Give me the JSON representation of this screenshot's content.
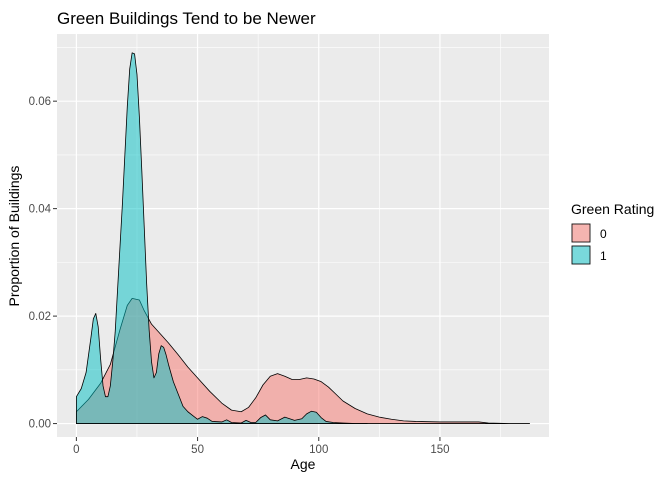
{
  "chart_data": {
    "type": "area",
    "title": "Green Buildings Tend to be Newer",
    "xlabel": "Age",
    "ylabel": "Proportion of Buildings",
    "xlim": [
      -8,
      195
    ],
    "ylim": [
      -0.0025,
      0.0725
    ],
    "x_ticks": [
      0,
      50,
      100,
      150
    ],
    "y_ticks": [
      0.0,
      0.02,
      0.04,
      0.06
    ],
    "x_tick_labels": [
      "0",
      "50",
      "100",
      "150"
    ],
    "y_tick_labels": [
      "0.00",
      "0.02",
      "0.04",
      "0.06"
    ],
    "grid": true,
    "legend": {
      "title": "Green Rating",
      "position": "right"
    },
    "series": [
      {
        "name": "0",
        "fill": "#F8766D",
        "points": [
          [
            0,
            0.0022
          ],
          [
            5,
            0.0045
          ],
          [
            10,
            0.0075
          ],
          [
            14,
            0.011
          ],
          [
            18,
            0.0175
          ],
          [
            21,
            0.022
          ],
          [
            23,
            0.0233
          ],
          [
            26,
            0.023
          ],
          [
            28,
            0.021
          ],
          [
            31,
            0.0185
          ],
          [
            35,
            0.0165
          ],
          [
            38,
            0.015
          ],
          [
            42,
            0.0128
          ],
          [
            46,
            0.0105
          ],
          [
            50,
            0.0085
          ],
          [
            55,
            0.006
          ],
          [
            60,
            0.0038
          ],
          [
            64,
            0.0025
          ],
          [
            68,
            0.0022
          ],
          [
            71,
            0.003
          ],
          [
            74,
            0.0048
          ],
          [
            77,
            0.0072
          ],
          [
            80,
            0.0088
          ],
          [
            83,
            0.0093
          ],
          [
            86,
            0.0088
          ],
          [
            89,
            0.0082
          ],
          [
            92,
            0.0082
          ],
          [
            95,
            0.0085
          ],
          [
            98,
            0.0083
          ],
          [
            101,
            0.0078
          ],
          [
            104,
            0.0068
          ],
          [
            107,
            0.0055
          ],
          [
            110,
            0.0042
          ],
          [
            115,
            0.0028
          ],
          [
            120,
            0.0018
          ],
          [
            125,
            0.0012
          ],
          [
            130,
            0.0008
          ],
          [
            135,
            0.0005
          ],
          [
            140,
            0.0004
          ],
          [
            150,
            0.0003
          ],
          [
            160,
            0.0003
          ],
          [
            166,
            0.0003
          ],
          [
            170,
            0.0001
          ],
          [
            180,
            0.0
          ],
          [
            187,
            0.0
          ]
        ]
      },
      {
        "name": "1",
        "fill": "#00BFC4",
        "points": [
          [
            0,
            0.005
          ],
          [
            2,
            0.0065
          ],
          [
            4,
            0.0095
          ],
          [
            6,
            0.016
          ],
          [
            7,
            0.0195
          ],
          [
            8,
            0.0205
          ],
          [
            9,
            0.018
          ],
          [
            10,
            0.012
          ],
          [
            11,
            0.007
          ],
          [
            12,
            0.005
          ],
          [
            13,
            0.005
          ],
          [
            14,
            0.007
          ],
          [
            15,
            0.0115
          ],
          [
            16,
            0.017
          ],
          [
            17,
            0.025
          ],
          [
            18,
            0.033
          ],
          [
            19,
            0.041
          ],
          [
            20,
            0.05
          ],
          [
            21,
            0.059
          ],
          [
            22,
            0.066
          ],
          [
            23,
            0.069
          ],
          [
            24,
            0.0688
          ],
          [
            25,
            0.065
          ],
          [
            26,
            0.057
          ],
          [
            27,
            0.047
          ],
          [
            28,
            0.0365
          ],
          [
            29,
            0.026
          ],
          [
            30,
            0.0175
          ],
          [
            31,
            0.0115
          ],
          [
            32,
            0.0085
          ],
          [
            33,
            0.0095
          ],
          [
            34,
            0.013
          ],
          [
            35,
            0.0145
          ],
          [
            36,
            0.0142
          ],
          [
            37,
            0.0128
          ],
          [
            38,
            0.011
          ],
          [
            40,
            0.0078
          ],
          [
            42,
            0.0055
          ],
          [
            44,
            0.0032
          ],
          [
            46,
            0.0022
          ],
          [
            48,
            0.0015
          ],
          [
            50,
            0.0008
          ],
          [
            52,
            0.0013
          ],
          [
            54,
            0.001
          ],
          [
            56,
            0.0004
          ],
          [
            60,
            0.0003
          ],
          [
            62,
            0.0007
          ],
          [
            64,
            0.0002
          ],
          [
            68,
            0.0001
          ],
          [
            70,
            0.0006
          ],
          [
            72,
            0.0002
          ],
          [
            74,
            0.0002
          ],
          [
            76,
            0.0011
          ],
          [
            78,
            0.0016
          ],
          [
            80,
            0.0007
          ],
          [
            83,
            0.0005
          ],
          [
            86,
            0.0012
          ],
          [
            88,
            0.0009
          ],
          [
            90,
            0.0006
          ],
          [
            93,
            0.0009
          ],
          [
            95,
            0.0018
          ],
          [
            97,
            0.0023
          ],
          [
            99,
            0.0021
          ],
          [
            101,
            0.0011
          ],
          [
            103,
            0.0004
          ],
          [
            106,
            0.0002
          ],
          [
            110,
            0.0001
          ],
          [
            115,
            0.0
          ],
          [
            120,
            0.0
          ]
        ]
      }
    ]
  }
}
